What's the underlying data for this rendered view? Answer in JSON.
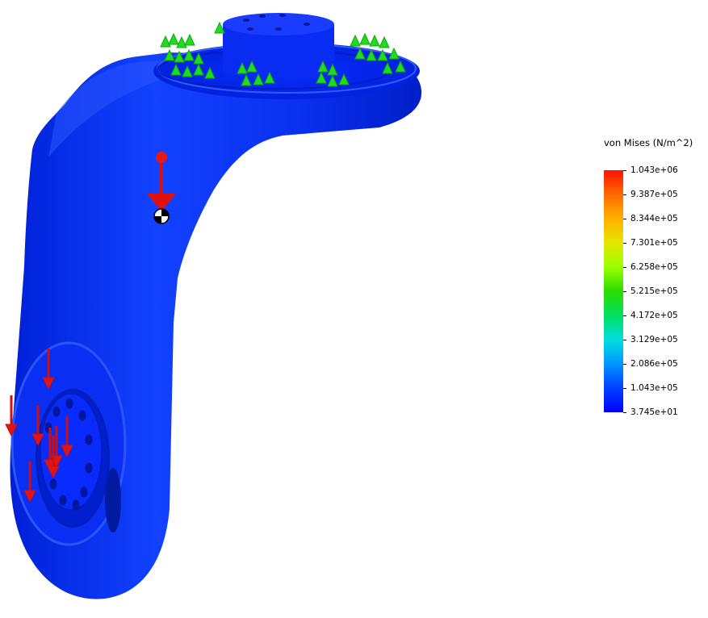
{
  "legend": {
    "title": "von Mises (N/m^2)",
    "ticks": [
      "1.043e+06",
      "9.387e+05",
      "8.344e+05",
      "7.301e+05",
      "6.258e+05",
      "5.215e+05",
      "4.172e+05",
      "3.129e+05",
      "2.086e+05",
      "1.043e+05",
      "3.745e+01"
    ]
  },
  "colors": {
    "part_blue": "#0a2bff",
    "load_arrow_red": "#e21010",
    "fixture_arrow_green": "#1fdc1f",
    "legend_max": "#ff1200",
    "legend_min": "#0000ff"
  }
}
